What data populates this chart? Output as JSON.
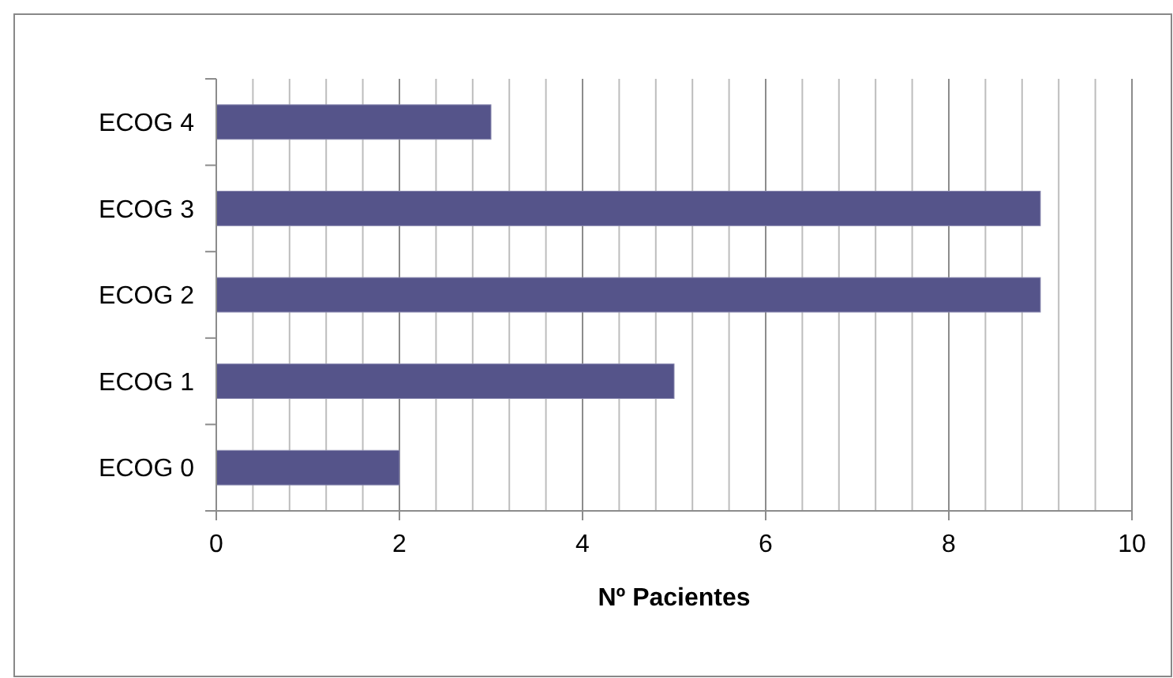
{
  "chart_data": {
    "type": "bar",
    "orientation": "horizontal",
    "xlabel": "Nº Pacientes",
    "categories": [
      "ECOG 4",
      "ECOG 3",
      "ECOG 2",
      "ECOG 1",
      "ECOG 0"
    ],
    "values": [
      3,
      9,
      9,
      5,
      2
    ],
    "color": "#55548a",
    "xlim": [
      0,
      10
    ],
    "xticks": [
      0,
      {
        "value": 0.4,
        "label": null
      },
      {
        "value": 0.8,
        "label": null
      },
      {
        "value": 1.2,
        "label": null
      },
      {
        "value": 1.6,
        "label": null
      },
      2,
      {
        "value": 2.4,
        "label": null
      },
      {
        "value": 2.8,
        "label": null
      },
      {
        "value": 3.2,
        "label": null
      },
      {
        "value": 3.6,
        "label": null
      },
      4,
      {
        "value": 4.4,
        "label": null
      },
      {
        "value": 4.8,
        "label": null
      },
      {
        "value": 5.2,
        "label": null
      },
      {
        "value": 5.6,
        "label": null
      },
      6,
      {
        "value": 6.4,
        "label": null
      },
      {
        "value": 6.8,
        "label": null
      },
      {
        "value": 7.2,
        "label": null
      },
      {
        "value": 7.6,
        "label": null
      },
      8,
      {
        "value": 8.4,
        "label": null
      },
      {
        "value": 8.8,
        "label": null
      },
      {
        "value": 9.2,
        "label": null
      },
      {
        "value": 9.6,
        "label": null
      },
      10
    ],
    "grid": "x"
  }
}
